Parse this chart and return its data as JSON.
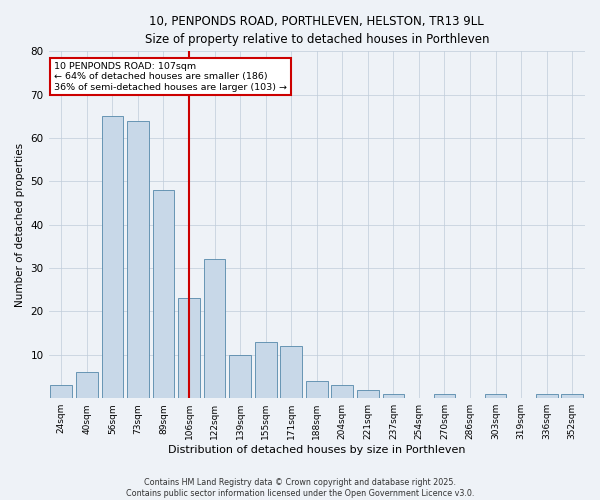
{
  "title": "10, PENPONDS ROAD, PORTHLEVEN, HELSTON, TR13 9LL",
  "subtitle": "Size of property relative to detached houses in Porthleven",
  "xlabel": "Distribution of detached houses by size in Porthleven",
  "ylabel": "Number of detached properties",
  "categories": [
    "24sqm",
    "40sqm",
    "56sqm",
    "73sqm",
    "89sqm",
    "106sqm",
    "122sqm",
    "139sqm",
    "155sqm",
    "171sqm",
    "188sqm",
    "204sqm",
    "221sqm",
    "237sqm",
    "254sqm",
    "270sqm",
    "286sqm",
    "303sqm",
    "319sqm",
    "336sqm",
    "352sqm"
  ],
  "values": [
    3,
    6,
    65,
    64,
    48,
    23,
    32,
    10,
    13,
    12,
    4,
    3,
    2,
    1,
    0,
    1,
    0,
    1,
    0,
    1,
    1
  ],
  "bar_color": "#c8d8e8",
  "bar_edge_color": "#5588aa",
  "vline_x": 5,
  "vline_color": "#cc0000",
  "annotation_text": "10 PENPONDS ROAD: 107sqm\n← 64% of detached houses are smaller (186)\n36% of semi-detached houses are larger (103) →",
  "annotation_box_color": "#ffffff",
  "annotation_box_edge": "#cc0000",
  "footer_line1": "Contains HM Land Registry data © Crown copyright and database right 2025.",
  "footer_line2": "Contains public sector information licensed under the Open Government Licence v3.0.",
  "bg_color": "#eef2f7",
  "plot_bg_color": "#eef2f7",
  "grid_color": "#c0ccda",
  "ylim": [
    0,
    80
  ],
  "yticks": [
    0,
    10,
    20,
    30,
    40,
    50,
    60,
    70,
    80
  ]
}
